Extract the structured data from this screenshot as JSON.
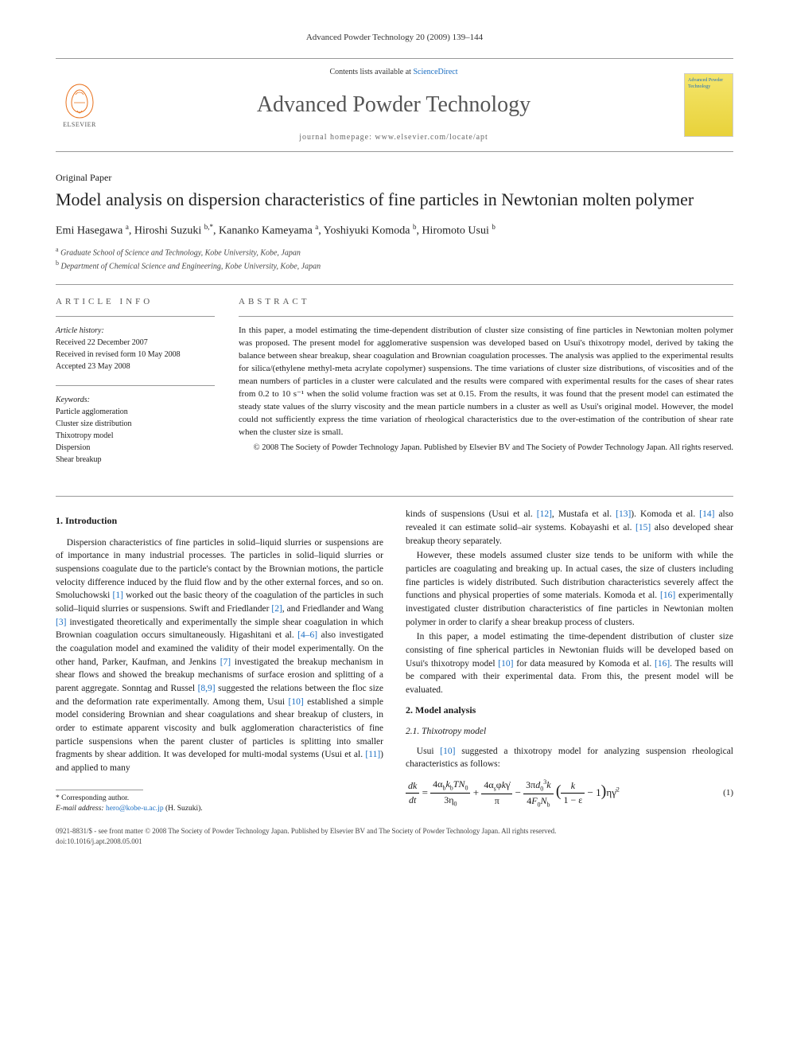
{
  "running_head": "Advanced Powder Technology 20 (2009) 139–144",
  "masthead": {
    "contents_prefix": "Contents lists available at ",
    "contents_link": "ScienceDirect",
    "journal": "Advanced Powder Technology",
    "homepage_prefix": "journal homepage: ",
    "homepage_url": "www.elsevier.com/locate/apt",
    "publisher": "ELSEVIER",
    "cover_text": "Advanced Powder Technology"
  },
  "paper_type": "Original Paper",
  "title": "Model analysis on dispersion characteristics of fine particles in Newtonian molten polymer",
  "authors_html": "Emi Hasegawa <sup>a</sup>, Hiroshi Suzuki <sup>b,*</sup>, Kananko Kameyama <sup>a</sup>, Yoshiyuki Komoda <sup>b</sup>, Hiromoto Usui <sup>b</sup>",
  "affiliations": [
    {
      "sup": "a",
      "text": "Graduate School of Science and Technology, Kobe University, Kobe, Japan"
    },
    {
      "sup": "b",
      "text": "Department of Chemical Science and Engineering, Kobe University, Kobe, Japan"
    }
  ],
  "info": {
    "heading": "ARTICLE INFO",
    "history_label": "Article history:",
    "history": [
      "Received 22 December 2007",
      "Received in revised form 10 May 2008",
      "Accepted 23 May 2008"
    ],
    "keywords_label": "Keywords:",
    "keywords": [
      "Particle agglomeration",
      "Cluster size distribution",
      "Thixotropy model",
      "Dispersion",
      "Shear breakup"
    ]
  },
  "abstract": {
    "heading": "ABSTRACT",
    "text": "In this paper, a model estimating the time-dependent distribution of cluster size consisting of fine particles in Newtonian molten polymer was proposed. The present model for agglomerative suspension was developed based on Usui's thixotropy model, derived by taking the balance between shear breakup, shear coagulation and Brownian coagulation processes. The analysis was applied to the experimental results for silica/(ethylene methyl-meta acrylate copolymer) suspensions. The time variations of cluster size distributions, of viscosities and of the mean numbers of particles in a cluster were calculated and the results were compared with experimental results for the cases of shear rates from 0.2 to 10 s⁻¹ when the solid volume fraction was set at 0.15. From the results, it was found that the present model can estimated the steady state values of the slurry viscosity and the mean particle numbers in a cluster as well as Usui's original model. However, the model could not sufficiently express the time variation of rheological characteristics due to the over-estimation of the contribution of shear rate when the cluster size is small.",
    "copyright": "© 2008 The Society of Powder Technology Japan. Published by Elsevier BV and The Society of Powder Technology Japan. All rights reserved."
  },
  "sections": {
    "intro_heading": "1. Introduction",
    "intro_p1": "Dispersion characteristics of fine particles in solid–liquid slurries or suspensions are of importance in many industrial processes. The particles in solid–liquid slurries or suspensions coagulate due to the particle's contact by the Brownian motions, the particle velocity difference induced by the fluid flow and by the other external forces, and so on. Smoluchowski [1] worked out the basic theory of the coagulation of the particles in such solid–liquid slurries or suspensions. Swift and Friedlander [2], and Friedlander and Wang [3] investigated theoretically and experimentally the simple shear coagulation in which Brownian coagulation occurs simultaneously. Higashitani et al. [4–6] also investigated the coagulation model and examined the validity of their model experimentally. On the other hand, Parker, Kaufman, and Jenkins [7] investigated the breakup mechanism in shear flows and showed the breakup mechanisms of surface erosion and splitting of a parent aggregate. Sonntag and Russel [8,9] suggested the relations between the floc size and the deformation rate experimentally. Among them, Usui [10] established a simple model considering Brownian and shear coagulations and shear breakup of clusters, in order to estimate apparent viscosity and bulk agglomeration characteristics of fine particle suspensions when the parent cluster of particles is splitting into smaller fragments by shear addition. It was developed for multi-modal systems (Usui et al. [11]) and applied to many",
    "intro_p2": "kinds of suspensions (Usui et al. [12], Mustafa et al. [13]). Komoda et al. [14] also revealed it can estimate solid–air systems. Kobayashi et al. [15] also developed shear breakup theory separately.",
    "intro_p3": "However, these models assumed cluster size tends to be uniform with while the particles are coagulating and breaking up. In actual cases, the size of clusters including fine particles is widely distributed. Such distribution characteristics severely affect the functions and physical properties of some materials. Komoda et al. [16] experimentally investigated cluster distribution characteristics of fine particles in Newtonian molten polymer in order to clarify a shear breakup process of clusters.",
    "intro_p4": "In this paper, a model estimating the time-dependent distribution of cluster size consisting of fine spherical particles in Newtonian fluids will be developed based on Usui's thixotropy model [10] for data measured by Komoda et al. [16]. The results will be compared with their experimental data. From this, the present model will be evaluated.",
    "model_heading": "2. Model analysis",
    "thix_heading": "2.1. Thixotropy model",
    "thix_p": "Usui [10] suggested a thixotropy model for analyzing suspension rheological characteristics as follows:",
    "eqn_num": "(1)"
  },
  "footnote": {
    "corr": "* Corresponding author.",
    "email_label": "E-mail address:",
    "email": "hero@kobe-u.ac.jp",
    "email_person": "(H. Suzuki)."
  },
  "bottom": {
    "issn": "0921-8831/$ - see front matter © 2008 The Society of Powder Technology Japan. Published by Elsevier BV and The Society of Powder Technology Japan. All rights reserved.",
    "doi": "doi:10.1016/j.apt.2008.05.001"
  },
  "colors": {
    "link": "#1b6ec2",
    "elsevier_orange": "#e9711c",
    "text": "#1a1a1a",
    "rule": "#999999"
  }
}
